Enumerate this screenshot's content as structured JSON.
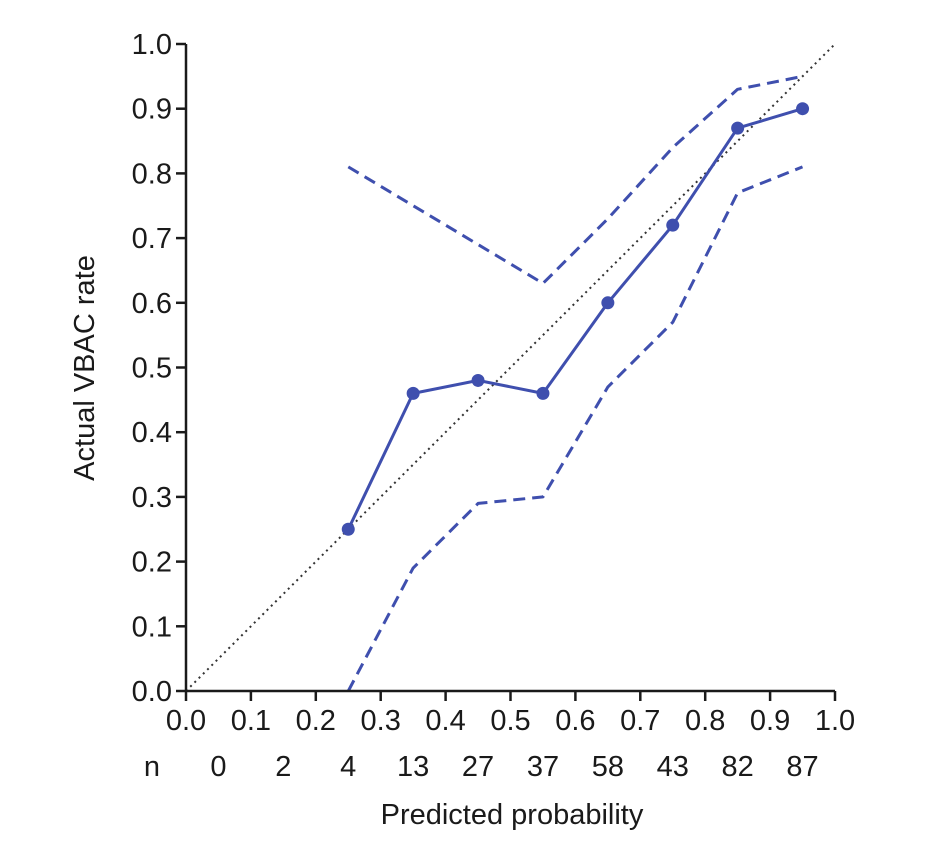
{
  "chart_data": {
    "type": "line",
    "title": "",
    "xlabel": "Predicted probability",
    "ylabel": "Actual VBAC rate",
    "xlim": [
      0.0,
      1.0
    ],
    "ylim": [
      0.0,
      1.0
    ],
    "xticks": [
      "0.0",
      "0.1",
      "0.2",
      "0.3",
      "0.4",
      "0.5",
      "0.6",
      "0.7",
      "0.8",
      "0.9",
      "1.0"
    ],
    "yticks": [
      "0.0",
      "0.1",
      "0.2",
      "0.3",
      "0.4",
      "0.5",
      "0.6",
      "0.7",
      "0.8",
      "0.9",
      "1.0"
    ],
    "n_row": {
      "label": "n",
      "x": [
        0.05,
        0.15,
        0.25,
        0.35,
        0.45,
        0.55,
        0.65,
        0.75,
        0.85,
        0.95
      ],
      "values": [
        "0",
        "2",
        "4",
        "13",
        "27",
        "37",
        "58",
        "43",
        "82",
        "87"
      ]
    },
    "grid": false,
    "colors": {
      "series": "#3f4fae",
      "reference": "#333333",
      "axis": "#1a1a1a"
    },
    "series": [
      {
        "style": "solid-markers",
        "x": [
          0.25,
          0.35,
          0.45,
          0.55,
          0.65,
          0.75,
          0.85,
          0.95
        ],
        "y": [
          0.25,
          0.46,
          0.48,
          0.46,
          0.6,
          0.72,
          0.87,
          0.9
        ]
      },
      {
        "style": "dashed",
        "x": [
          0.25,
          0.55,
          0.65,
          0.75,
          0.85,
          0.95
        ],
        "y": [
          0.81,
          0.63,
          0.73,
          0.84,
          0.93,
          0.95
        ]
      },
      {
        "style": "dashed",
        "x": [
          0.25,
          0.35,
          0.45,
          0.55,
          0.65,
          0.75,
          0.85,
          0.95
        ],
        "y": [
          0.0,
          0.19,
          0.29,
          0.3,
          0.47,
          0.57,
          0.77,
          0.81
        ]
      },
      {
        "style": "dotted",
        "x": [
          0.0,
          1.0
        ],
        "y": [
          0.0,
          1.0
        ]
      }
    ]
  }
}
